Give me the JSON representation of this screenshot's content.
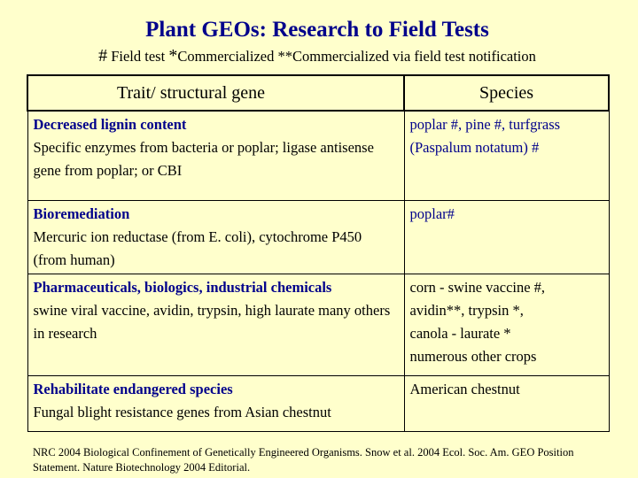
{
  "title": "Plant GEOs: Research to Field Tests",
  "legend": {
    "mark1": "#",
    "text1": " Field test ",
    "mark2": "*",
    "text2": "Commercialized  ",
    "mark3": "**",
    "text3": "Commercialized via field test notification"
  },
  "table": {
    "headers": {
      "trait": "Trait/ structural gene",
      "species": "Species"
    },
    "rows": [
      {
        "trait_title": "Decreased lignin content",
        "trait_detail": "Specific enzymes from bacteria or poplar; ligase antisense gene from poplar; or CBI",
        "species": [
          "poplar #, pine #,  turfgrass",
          "(Paspalum notatum) #"
        ]
      },
      {
        "trait_title": "Bioremediation",
        "trait_detail": "Mercuric ion reductase (from E. coli), cytochrome P450 (from human)",
        "species": [
          "poplar#"
        ]
      },
      {
        "trait_title": "Pharmaceuticals, biologics, industrial chemicals",
        "trait_detail": "swine viral vaccine, avidin, trypsin,  high laurate many others in research",
        "species": [
          "corn - swine vaccine #,",
          "avidin**, trypsin *,",
          "canola - laurate *",
          "numerous other crops"
        ]
      },
      {
        "trait_title": "Rehabilitate endangered species",
        "trait_detail": "Fungal blight resistance genes from Asian chestnut",
        "species": [
          "American chestnut"
        ]
      }
    ]
  },
  "footnote": "NRC 2004 Biological Confinement of Genetically Engineered Organisms. Snow et al. 2004 Ecol. Soc. Am. GEO Position Statement.  Nature Biotechnology 2004 Editorial.",
  "colors": {
    "background": "#FFFFCC",
    "accent": "#00008B",
    "text": "#000000"
  }
}
